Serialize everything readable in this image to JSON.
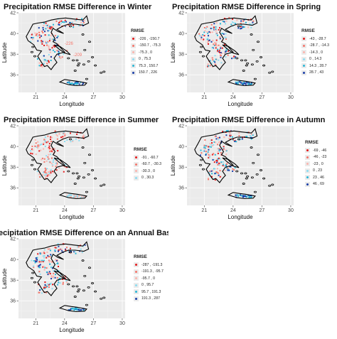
{
  "panels": [
    {
      "title": "Precipitation RMSE Difference in Winter",
      "x_label": "Longitude",
      "y_label": "Latitude",
      "x_ticks": [
        "21",
        "24",
        "27",
        "30"
      ],
      "y_ticks": [
        "36",
        "38",
        "40",
        "42"
      ],
      "legend_title": "RMSE",
      "legend_items": [
        {
          "label": "-226 , -150.7",
          "color": "#e41a1c"
        },
        {
          "label": "-150.7 , -75.3",
          "color": "#f4756a"
        },
        {
          "label": "-75.3 , 0",
          "color": "#fbb4ae"
        },
        {
          "label": "0 , 75.3",
          "color": "#8ddcf0"
        },
        {
          "label": "75.3 , 150.7",
          "color": "#29b6d6"
        },
        {
          "label": "150.7 , 226",
          "color": "#1a3fa8"
        }
      ],
      "annotations": [
        "-226",
        "-209"
      ]
    },
    {
      "title": "Precipitation RMSE Difference in Spring",
      "x_label": "Longitude",
      "y_label": "Latitude",
      "x_ticks": [
        "21",
        "24",
        "27",
        "30"
      ],
      "y_ticks": [
        "36",
        "38",
        "40",
        "42"
      ],
      "legend_title": "RMSE",
      "legend_items": [
        {
          "label": "-43 , -28.7",
          "color": "#e41a1c"
        },
        {
          "label": "-28.7 , -14.3",
          "color": "#f4756a"
        },
        {
          "label": "-14.3 , 0",
          "color": "#fbb4ae"
        },
        {
          "label": "0 , 14.3",
          "color": "#8ddcf0"
        },
        {
          "label": "14.3 , 28.7",
          "color": "#29b6d6"
        },
        {
          "label": "28.7 , 43",
          "color": "#1a3fa8"
        }
      ],
      "annotations": []
    },
    {
      "title": "Precipitation RMSE Difference in Summer",
      "x_label": "Longitude",
      "y_label": "Latitude",
      "x_ticks": [
        "21",
        "24",
        "27",
        "30"
      ],
      "y_ticks": [
        "36",
        "38",
        "40",
        "42"
      ],
      "legend_title": "RMSE",
      "legend_items": [
        {
          "label": "-91 , -60.7",
          "color": "#e41a1c"
        },
        {
          "label": "-60.7 , -30.3",
          "color": "#f4756a"
        },
        {
          "label": "-30.3 , 0",
          "color": "#fbb4ae"
        },
        {
          "label": "0 , 30.3",
          "color": "#8ddcf0"
        }
      ],
      "annotations": []
    },
    {
      "title": "Precipitation RMSE Difference in Autumn",
      "x_label": "Longitude",
      "y_label": "Latitude",
      "x_ticks": [
        "21",
        "24",
        "27",
        "30"
      ],
      "y_ticks": [
        "36",
        "38",
        "40",
        "42"
      ],
      "legend_title": "RMSE",
      "legend_items": [
        {
          "label": "-69 , -46",
          "color": "#e41a1c"
        },
        {
          "label": "-46 , -23",
          "color": "#f4756a"
        },
        {
          "label": "-23 , 0",
          "color": "#fbb4ae"
        },
        {
          "label": "0 , 23",
          "color": "#8ddcf0"
        },
        {
          "label": "23 , 46",
          "color": "#29b6d6"
        },
        {
          "label": "46 , 69",
          "color": "#1a3fa8"
        }
      ],
      "annotations": []
    },
    {
      "title": "ecipitation RMSE Difference on an Annual Basis",
      "x_label": "Longitude",
      "y_label": "Latitude",
      "x_ticks": [
        "21",
        "24",
        "27",
        "30"
      ],
      "y_ticks": [
        "36",
        "38",
        "40",
        "42"
      ],
      "legend_title": "RMSE",
      "legend_items": [
        {
          "label": "-287 , -191.3",
          "color": "#e41a1c"
        },
        {
          "label": "-191.3 , -95.7",
          "color": "#f4756a"
        },
        {
          "label": "-95.7 , 0",
          "color": "#fbb4ae"
        },
        {
          "label": "0 , 95.7",
          "color": "#8ddcf0"
        },
        {
          "label": "95.7 , 191.3",
          "color": "#29b6d6"
        },
        {
          "label": "191.3 , 287",
          "color": "#1a3fa8"
        }
      ],
      "annotations": []
    }
  ]
}
